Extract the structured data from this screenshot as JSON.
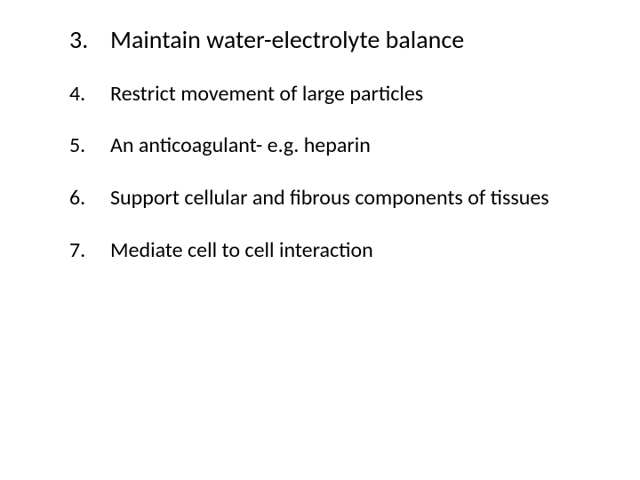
{
  "text_color": "#000000",
  "background_color": "#ffffff",
  "font_family": "Calibri, 'Segoe UI', Arial, sans-serif",
  "main_fontsize_pt": 28,
  "sub_fontsize_pt": 24,
  "items": [
    {
      "number": "3.",
      "text": "Maintain water-electrolyte balance",
      "level": "main"
    },
    {
      "number": "4.",
      "text": "Restrict movement of large particles",
      "level": "sub"
    },
    {
      "number": "5.",
      "text": "An anticoagulant-  e.g. heparin",
      "level": "sub"
    },
    {
      "number": "6.",
      "text": "Support cellular and fibrous components of tissues",
      "level": "sub"
    },
    {
      "number": "7.",
      "text": "Mediate cell to cell interaction",
      "level": "sub"
    }
  ]
}
